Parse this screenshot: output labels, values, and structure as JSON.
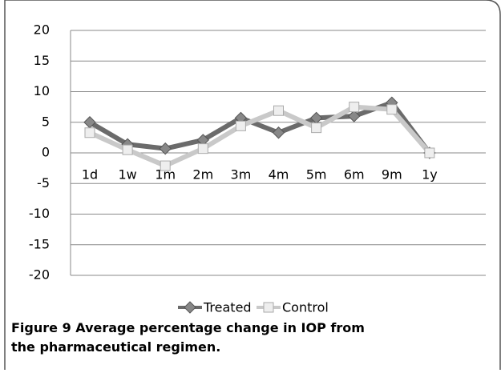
{
  "chart_data": {
    "type": "line",
    "categories": [
      "1d",
      "1w",
      "1m",
      "2m",
      "3m",
      "4m",
      "5m",
      "6m",
      "9m",
      "1y"
    ],
    "series": [
      {
        "name": "Treated",
        "color": "#6b6b6b",
        "values": [
          5.0,
          1.4,
          0.7,
          2.1,
          5.7,
          3.3,
          5.7,
          6.0,
          8.2,
          0
        ]
      },
      {
        "name": "Control",
        "color": "#c9c9c9",
        "values": [
          3.3,
          0.5,
          -2.1,
          0.7,
          4.4,
          6.9,
          4.1,
          7.5,
          7.1,
          0
        ]
      }
    ],
    "ylim": [
      -20,
      20
    ],
    "yticks": [
      -20,
      -15,
      -10,
      -5,
      0,
      5,
      10,
      15,
      20
    ],
    "grid": true,
    "legend": "bottom",
    "caption": "Figure 9 Average percentage change in IOP from the pharmaceutical regimen."
  }
}
